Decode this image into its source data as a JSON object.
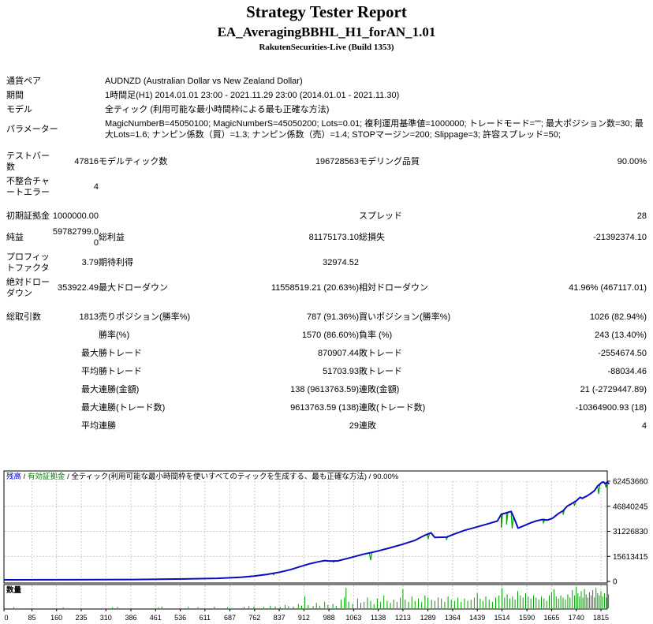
{
  "header": {
    "title": "Strategy Tester Report",
    "subtitle": "EA_AveragingBBHL_H1_forAN_1.01",
    "server": "RakutenSecurities-Live (Build 1353)"
  },
  "report": {
    "rows": [
      {
        "type": "info",
        "label": "通貨ペア",
        "value": "AUDNZD (Australian Dollar vs New Zealand Dollar)"
      },
      {
        "type": "info",
        "label": "期間",
        "value": "1時間足(H1) 2014.01.01 23:00 - 2021.11.29 23:00 (2014.01.01 - 2021.11.30)"
      },
      {
        "type": "info",
        "label": "モデル",
        "value": "全ティック (利用可能な最小時間枠による最も正確な方法)"
      },
      {
        "type": "info",
        "label": "パラメーター",
        "value": "MagicNumberB=45050100; MagicNumberS=45050200; Lots=0.01; 複利運用基準値=1000000; トレードモード=\"\"; 最大ポジション数=30; 最大Lots=1.6; ナンピン係数（買）=1.3; ナンピン係数（売）=1.4; STOPマージン=200; Slippage=3; 許容スプレッド=50;"
      },
      {
        "type": "spacer"
      },
      {
        "type": "stats",
        "cells": [
          "テストバー数",
          "47816",
          "モデルティック数",
          "196728563",
          "モデリング品質",
          "90.00%"
        ]
      },
      {
        "type": "stats",
        "cells": [
          "不整合チャートエラー",
          "4",
          "",
          "",
          "",
          ""
        ]
      },
      {
        "type": "spacer"
      },
      {
        "type": "stats",
        "cells": [
          "初期証拠金",
          "1000000.00",
          "",
          "",
          "スプレッド",
          "28"
        ]
      },
      {
        "type": "stats",
        "cells": [
          "純益",
          "59782799.00",
          "総利益",
          "81175173.10",
          "総損失",
          "-21392374.10"
        ]
      },
      {
        "type": "stats",
        "cells": [
          "プロフィットファクタ",
          "3.79",
          "期待利得",
          "32974.52",
          "",
          ""
        ]
      },
      {
        "type": "stats",
        "cells": [
          "絶対ドローダウン",
          "353922.49",
          "最大ドローダウン",
          "11558519.21 (20.63%)",
          "相対ドローダウン",
          "41.96% (467117.01)"
        ]
      },
      {
        "type": "spacer"
      },
      {
        "type": "stats",
        "cells": [
          "総取引数",
          "1813",
          "売りポジション(勝率%)",
          "787 (91.36%)",
          "買いポジション(勝率%)",
          "1026 (82.94%)"
        ]
      },
      {
        "type": "stats",
        "cells": [
          "",
          "",
          "勝率(%)",
          "1570 (86.60%)",
          "負率 (%)",
          "243 (13.40%)"
        ]
      },
      {
        "type": "stats",
        "cells": [
          "",
          "最大",
          "勝トレード",
          "870907.44",
          "敗トレード",
          "-2554674.50"
        ]
      },
      {
        "type": "stats",
        "cells": [
          "",
          "平均",
          "勝トレード",
          "51703.93",
          "敗トレード",
          "-88034.46"
        ]
      },
      {
        "type": "stats",
        "cells": [
          "",
          "最大",
          "連勝(金額)",
          "138 (9613763.59)",
          "連敗(金額)",
          "21 (-2729447.89)"
        ]
      },
      {
        "type": "stats",
        "cells": [
          "",
          "最大",
          "連勝(トレード数)",
          "9613763.59 (138)",
          "連敗(トレード数)",
          "-10364900.93 (18)"
        ]
      },
      {
        "type": "stats",
        "cells": [
          "",
          "平均",
          "連勝",
          "29",
          "連敗",
          "4"
        ]
      }
    ]
  },
  "chart_data": {
    "type": "line",
    "title": "残高 / 有効証拠金 / 全ティック(利用可能な最小時間枠を使いすべてのティックを生成する、最も正確な方法) / 90.00%",
    "legend": [
      {
        "name": "残高",
        "color": "#0000c8"
      },
      {
        "name": "有効証拠金",
        "color": "#008000"
      },
      {
        "name": "全ティック(利用可能な最小時間枠を使いすべてのティックを生成する、最も正確な方法)",
        "color": "#000000"
      },
      {
        "name": "90.00%",
        "color": "#000000"
      }
    ],
    "colors": {
      "balance": "#0b0bc4",
      "equity": "#00a000",
      "volume": "#00a000",
      "grid": "#c9c9c9"
    },
    "ylabel_side": "right",
    "grid": true,
    "y_ticks": [
      62453660,
      46840245,
      31226830,
      15613415,
      0
    ],
    "x_ticks": [
      0,
      85,
      160,
      235,
      310,
      386,
      461,
      536,
      611,
      687,
      762,
      837,
      912,
      988,
      1063,
      1138,
      1213,
      1289,
      1364,
      1439,
      1514,
      1590,
      1665,
      1740,
      1815
    ],
    "ylim": [
      0,
      69500000
    ],
    "xlim": [
      0,
      1840
    ],
    "series": [
      {
        "name": "残高",
        "points": [
          [
            0,
            1000000
          ],
          [
            200,
            1050000
          ],
          [
            400,
            1200000
          ],
          [
            550,
            1500000
          ],
          [
            650,
            1900000
          ],
          [
            720,
            2600000
          ],
          [
            760,
            3300000
          ],
          [
            800,
            4400000
          ],
          [
            840,
            5800000
          ],
          [
            870,
            7300000
          ],
          [
            900,
            9200000
          ],
          [
            930,
            11000000
          ],
          [
            955,
            12200000
          ],
          [
            975,
            13000000
          ],
          [
            990,
            12700000
          ],
          [
            1015,
            12800000
          ],
          [
            1050,
            14600000
          ],
          [
            1090,
            16800000
          ],
          [
            1130,
            18600000
          ],
          [
            1170,
            20700000
          ],
          [
            1210,
            23000000
          ],
          [
            1250,
            25600000
          ],
          [
            1280,
            28800000
          ],
          [
            1298,
            30300000
          ],
          [
            1310,
            27400000
          ],
          [
            1345,
            27600000
          ],
          [
            1370,
            29600000
          ],
          [
            1400,
            31800000
          ],
          [
            1435,
            33800000
          ],
          [
            1470,
            35800000
          ],
          [
            1500,
            37600000
          ],
          [
            1512,
            41800000
          ],
          [
            1528,
            42800000
          ],
          [
            1542,
            43600000
          ],
          [
            1552,
            39000000
          ],
          [
            1563,
            33200000
          ],
          [
            1580,
            34600000
          ],
          [
            1600,
            36400000
          ],
          [
            1620,
            37800000
          ],
          [
            1638,
            38600000
          ],
          [
            1652,
            38200000
          ],
          [
            1668,
            39400000
          ],
          [
            1685,
            42200000
          ],
          [
            1700,
            44000000
          ],
          [
            1712,
            46800000
          ],
          [
            1725,
            48400000
          ],
          [
            1740,
            50200000
          ],
          [
            1752,
            52400000
          ],
          [
            1758,
            51800000
          ],
          [
            1772,
            53200000
          ],
          [
            1782,
            54500000
          ],
          [
            1795,
            56500000
          ],
          [
            1805,
            59500000
          ],
          [
            1815,
            61200000
          ],
          [
            1822,
            62100000
          ],
          [
            1828,
            60900000
          ],
          [
            1834,
            61900000
          ],
          [
            1840,
            60782799
          ]
        ]
      },
      {
        "name": "有効証拠金",
        "spikes": [
          [
            67,
            850000
          ],
          [
            328,
            1050000
          ],
          [
            575,
            1500000
          ],
          [
            748,
            2700000
          ],
          [
            820,
            4200000
          ],
          [
            1002,
            12000000
          ],
          [
            1115,
            13200000
          ],
          [
            1290,
            26800000
          ],
          [
            1345,
            25800000
          ],
          [
            1512,
            33500000
          ],
          [
            1528,
            35500000
          ],
          [
            1545,
            33000000
          ],
          [
            1640,
            36500000
          ],
          [
            1700,
            41500000
          ],
          [
            1735,
            47500000
          ],
          [
            1808,
            54500000
          ],
          [
            1830,
            58500000
          ]
        ]
      }
    ],
    "volume": {
      "label": "数量",
      "bars": [
        [
          30,
          0.05
        ],
        [
          180,
          0.04
        ],
        [
          330,
          0.05
        ],
        [
          345,
          0.06
        ],
        [
          470,
          0.05
        ],
        [
          480,
          0.08
        ],
        [
          560,
          0.06
        ],
        [
          590,
          0.05
        ],
        [
          640,
          0.07
        ],
        [
          680,
          0.05
        ],
        [
          730,
          0.06
        ],
        [
          745,
          0.1
        ],
        [
          760,
          0.08
        ],
        [
          790,
          0.06
        ],
        [
          810,
          0.12
        ],
        [
          825,
          0.09
        ],
        [
          840,
          0.07
        ],
        [
          855,
          0.15
        ],
        [
          865,
          0.1
        ],
        [
          880,
          0.08
        ],
        [
          895,
          0.2
        ],
        [
          905,
          0.12
        ],
        [
          915,
          0.55
        ],
        [
          925,
          0.15
        ],
        [
          940,
          0.1
        ],
        [
          950,
          0.25
        ],
        [
          960,
          0.12
        ],
        [
          975,
          0.3
        ],
        [
          985,
          0.15
        ],
        [
          1000,
          0.2
        ],
        [
          1010,
          0.12
        ],
        [
          1025,
          0.4
        ],
        [
          1035,
          0.5
        ],
        [
          1040,
          0.95
        ],
        [
          1048,
          0.3
        ],
        [
          1060,
          0.2
        ],
        [
          1075,
          0.45
        ],
        [
          1085,
          0.25
        ],
        [
          1095,
          0.3
        ],
        [
          1105,
          0.5
        ],
        [
          1115,
          0.35
        ],
        [
          1125,
          0.2
        ],
        [
          1135,
          0.45
        ],
        [
          1145,
          0.3
        ],
        [
          1155,
          0.6
        ],
        [
          1165,
          0.35
        ],
        [
          1175,
          0.25
        ],
        [
          1185,
          0.4
        ],
        [
          1195,
          0.3
        ],
        [
          1205,
          0.5
        ],
        [
          1213,
          0.9
        ],
        [
          1220,
          0.4
        ],
        [
          1230,
          0.3
        ],
        [
          1240,
          0.55
        ],
        [
          1250,
          0.35
        ],
        [
          1260,
          0.45
        ],
        [
          1270,
          0.3
        ],
        [
          1280,
          0.6
        ],
        [
          1289,
          0.5
        ],
        [
          1300,
          0.4
        ],
        [
          1310,
          0.35
        ],
        [
          1320,
          0.5
        ],
        [
          1330,
          0.45
        ],
        [
          1340,
          0.3
        ],
        [
          1350,
          0.55
        ],
        [
          1360,
          0.4
        ],
        [
          1370,
          0.35
        ],
        [
          1380,
          0.5
        ],
        [
          1390,
          0.3
        ],
        [
          1400,
          0.45
        ],
        [
          1410,
          0.35
        ],
        [
          1420,
          0.4
        ],
        [
          1430,
          0.5
        ],
        [
          1439,
          0.7
        ],
        [
          1448,
          0.45
        ],
        [
          1456,
          0.35
        ],
        [
          1465,
          0.55
        ],
        [
          1475,
          0.4
        ],
        [
          1485,
          0.3
        ],
        [
          1495,
          0.5
        ],
        [
          1505,
          0.6
        ],
        [
          1514,
          0.95
        ],
        [
          1522,
          0.5
        ],
        [
          1530,
          0.65
        ],
        [
          1538,
          0.45
        ],
        [
          1546,
          0.55
        ],
        [
          1554,
          0.4
        ],
        [
          1562,
          0.8
        ],
        [
          1570,
          0.6
        ],
        [
          1578,
          0.5
        ],
        [
          1586,
          0.7
        ],
        [
          1594,
          0.55
        ],
        [
          1602,
          0.45
        ],
        [
          1610,
          0.6
        ],
        [
          1618,
          0.5
        ],
        [
          1626,
          0.4
        ],
        [
          1634,
          0.55
        ],
        [
          1642,
          0.45
        ],
        [
          1650,
          0.35
        ],
        [
          1658,
          0.6
        ],
        [
          1665,
          0.75
        ],
        [
          1672,
          0.9
        ],
        [
          1679,
          0.55
        ],
        [
          1686,
          0.45
        ],
        [
          1693,
          0.6
        ],
        [
          1700,
          0.5
        ],
        [
          1707,
          0.4
        ],
        [
          1714,
          0.65
        ],
        [
          1721,
          0.5
        ],
        [
          1728,
          0.85
        ],
        [
          1735,
          0.6
        ],
        [
          1740,
          1.0
        ],
        [
          1745,
          0.7
        ],
        [
          1750,
          0.55
        ],
        [
          1755,
          0.8
        ],
        [
          1760,
          0.5
        ],
        [
          1765,
          0.9
        ],
        [
          1770,
          0.65
        ],
        [
          1775,
          0.5
        ],
        [
          1780,
          0.75
        ],
        [
          1785,
          0.6
        ],
        [
          1790,
          0.85
        ],
        [
          1795,
          0.5
        ],
        [
          1800,
          0.95
        ],
        [
          1805,
          0.7
        ],
        [
          1810,
          0.6
        ],
        [
          1815,
          0.8
        ],
        [
          1820,
          0.55
        ],
        [
          1826,
          0.7
        ],
        [
          1832,
          0.5
        ],
        [
          1838,
          0.65
        ]
      ]
    }
  }
}
